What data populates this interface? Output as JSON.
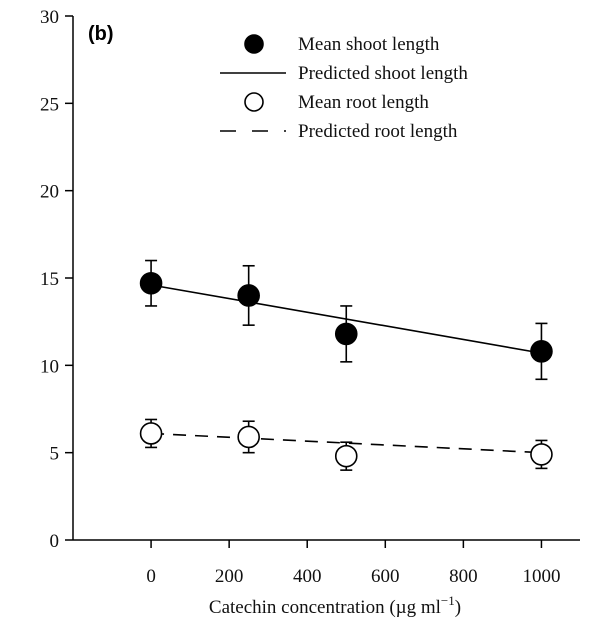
{
  "chart_data": {
    "type": "scatter",
    "panel_label": "(b)",
    "xlabel": "Catechin concentration (µg ml",
    "xlabel_superscript": "−1",
    "xlabel_suffix": ")",
    "ylabel": "",
    "xlim": [
      -200,
      1150
    ],
    "ylim": [
      0,
      30
    ],
    "x_ticks": [
      0,
      200,
      400,
      600,
      800,
      1000
    ],
    "y_ticks": [
      0,
      5,
      10,
      15,
      20,
      25,
      30
    ],
    "x_tick_labels": [
      "0",
      "200",
      "400",
      "600",
      "800",
      "1000"
    ],
    "y_tick_labels": [
      "0",
      "5",
      "10",
      "15",
      "20",
      "25",
      "30"
    ],
    "grid": false,
    "legend_position": "top-right",
    "series": [
      {
        "name": "Mean shoot length",
        "kind": "points",
        "marker": "filled-circle",
        "x": [
          0,
          250,
          500,
          1000
        ],
        "y": [
          14.7,
          14.0,
          11.8,
          10.8
        ],
        "err": [
          1.3,
          1.7,
          1.6,
          1.6
        ]
      },
      {
        "name": "Predicted shoot length",
        "kind": "line",
        "style": "solid",
        "x": [
          0,
          1000
        ],
        "y": [
          14.6,
          10.7
        ]
      },
      {
        "name": "Mean root length",
        "kind": "points",
        "marker": "open-circle",
        "x": [
          0,
          250,
          500,
          1000
        ],
        "y": [
          6.1,
          5.9,
          4.8,
          4.9
        ],
        "err": [
          0.8,
          0.9,
          0.8,
          0.8
        ]
      },
      {
        "name": "Predicted root length",
        "kind": "line",
        "style": "dashed",
        "x": [
          0,
          1000
        ],
        "y": [
          6.1,
          5.0
        ]
      }
    ]
  }
}
